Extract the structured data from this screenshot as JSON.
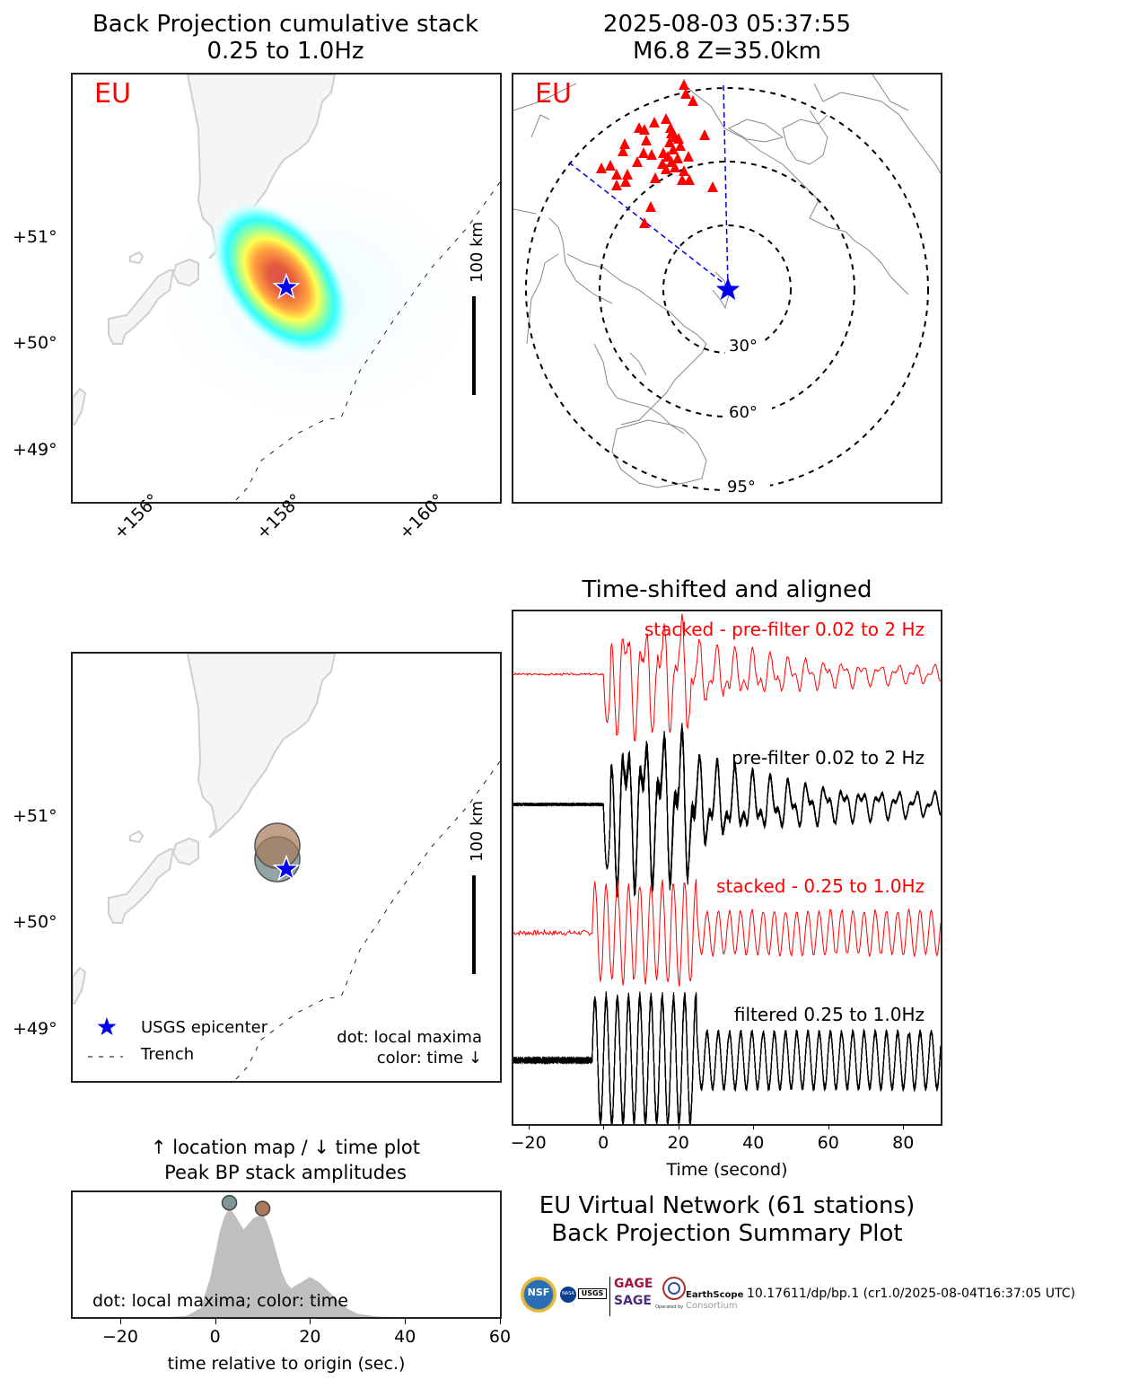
{
  "chart_data": [
    {
      "type": "heatmap",
      "id": "bp_cumulative_stack",
      "title": "Back Projection cumulative stack\n0.25 to 1.0Hz",
      "title_lines": [
        "Back Projection cumulative stack",
        "0.25 to 1.0Hz"
      ],
      "network_label": "EU",
      "scale_bar_label": "100 km",
      "ylabel_ticks": [
        "+51°",
        "+50°",
        "+49°"
      ],
      "y_ticks": [
        51,
        50,
        49
      ],
      "xlabel_ticks": [
        "+156°",
        "+158°",
        "+160°"
      ],
      "x_ticks": [
        156,
        158,
        160
      ],
      "xlim": [
        154.8,
        161.0
      ],
      "ylim": [
        48.5,
        52.5
      ],
      "epicenter": {
        "lon": 157.9,
        "lat": 50.5
      },
      "peak": {
        "lon": 157.6,
        "lat": 50.7,
        "value": 1.0
      },
      "colormap": "jet (white-to-red)"
    },
    {
      "type": "scatter",
      "id": "station_map",
      "title_lines": [
        "2025-08-03 05:37:55",
        "M6.8 Z=35.0km"
      ],
      "network_label": "EU",
      "distance_rings": [
        "30°",
        "60°",
        "95°"
      ],
      "distance_ring_values": [
        30,
        60,
        95
      ],
      "station_count": 61,
      "station_marker": "red triangle",
      "epicenter_marker": "blue star"
    },
    {
      "type": "scatter",
      "id": "peak_location_map",
      "ylabel_ticks": [
        "+51°",
        "+50°",
        "+49°"
      ],
      "y_ticks": [
        51,
        50,
        49
      ],
      "scale_bar_label": "100 km",
      "legend": [
        {
          "label": "USGS epicenter",
          "marker": "blue-star"
        },
        {
          "label": "Trench",
          "marker": "dashed-line"
        }
      ],
      "annotation_lines": [
        "dot: local maxima",
        "color: time ↓"
      ],
      "local_maxima": [
        {
          "lon": 157.75,
          "lat": 50.55,
          "time": 3,
          "color": "#7f9596"
        },
        {
          "lon": 157.75,
          "lat": 50.7,
          "time": 10,
          "color": "#a8795a"
        }
      ]
    },
    {
      "type": "line",
      "id": "time_shifted_traces",
      "title": "Time-shifted and aligned",
      "xlabel": "Time (second)",
      "x_ticks": [
        -20,
        0,
        20,
        40,
        60,
        80
      ],
      "x_tick_labels": [
        "−20",
        "0",
        "20",
        "40",
        "60",
        "80"
      ],
      "xlim": [
        -24,
        90
      ],
      "series": [
        {
          "name": "stacked - pre-filter 0.02 to 2 Hz",
          "color": "#ff0000"
        },
        {
          "name": "pre-filter 0.02 to 2 Hz",
          "color": "#000000"
        },
        {
          "name": "stacked - 0.25 to 1.0Hz",
          "color": "#ff0000"
        },
        {
          "name": "filtered 0.25 to 1.0Hz",
          "color": "#000000"
        }
      ]
    },
    {
      "type": "area",
      "id": "peak_bp_amplitude_time",
      "title_lines": [
        "↑ location map / ↓ time plot",
        "Peak BP stack amplitudes"
      ],
      "xlabel": "time relative to origin (sec.)",
      "x_ticks": [
        -20,
        0,
        20,
        40,
        60
      ],
      "x_tick_labels": [
        "−20",
        "0",
        "20",
        "40",
        "60"
      ],
      "xlim": [
        -30,
        60
      ],
      "ylim": [
        0,
        1.0
      ],
      "annotation": "dot: local maxima; color: time",
      "x": [
        -30,
        -10,
        -6,
        -3,
        -1,
        0,
        1,
        2,
        3,
        4,
        6,
        8,
        10,
        11,
        12,
        13,
        14,
        15,
        16,
        18,
        20,
        22,
        24,
        26,
        28,
        30,
        34,
        40,
        60
      ],
      "y": [
        0,
        0,
        0.01,
        0.08,
        0.35,
        0.55,
        0.75,
        0.88,
        0.95,
        0.9,
        0.76,
        0.86,
        0.9,
        0.82,
        0.7,
        0.55,
        0.4,
        0.3,
        0.25,
        0.3,
        0.35,
        0.3,
        0.22,
        0.14,
        0.07,
        0.03,
        0.005,
        0,
        0
      ],
      "local_maxima": [
        {
          "time": 3,
          "value": 0.98,
          "color": "#7f9596"
        },
        {
          "time": 10,
          "value": 0.93,
          "color": "#a8795a"
        }
      ],
      "fill_color": "#bfbfbf"
    }
  ],
  "summary": {
    "lines": [
      "EU Virtual Network (61 stations)",
      "Back Projection Summary Plot"
    ]
  },
  "footer": {
    "doi_text": "10.17611/dp/bp.1 (cr1.0/2025-08-04T16:37:05 UTC)",
    "logos": {
      "nsf": "NSF",
      "nasa": "NASA",
      "usgs": "USGS",
      "gage": "GAGE",
      "sage": "SAGE",
      "operated_by": "Operated by",
      "earthscope": "EarthScope",
      "consortium": "Consortium"
    }
  }
}
